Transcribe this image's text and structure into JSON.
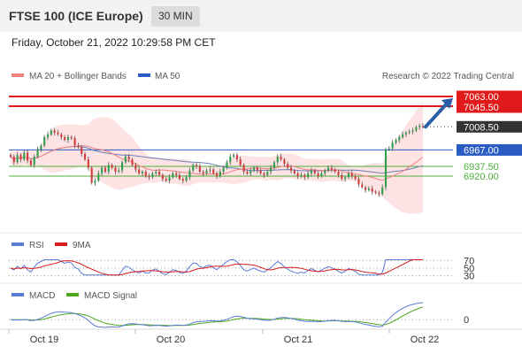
{
  "header": {
    "title": "FTSE 100 (ICE Europe)",
    "interval": "30 MIN"
  },
  "datetime": "Friday, October 21, 2022 10:29:58 PM CET",
  "colors": {
    "resistance": "#e01a1a",
    "pivot": "#2a5cc4",
    "support": "#4caf3a",
    "current": "#333333",
    "bollinger": "#fde3e3",
    "ma50": "#6b7fb3",
    "ma20": "#f08080",
    "rsi": "#5b7bd5",
    "rsi_ma": "#d61c1c",
    "macd": "#5b7bd5",
    "macd_signal": "#4ca81f",
    "arrow": "#2a5fa8"
  },
  "chart_data": {
    "type": "candlestick",
    "legend": [
      "MA 20 + Bollinger Bands",
      "MA 50"
    ],
    "watermark": "Research © 2022 Trading Central",
    "x_ticks": [
      "Oct 19",
      "Oct 20",
      "Oct 21",
      "Oct 22"
    ],
    "price_range": [
      6820,
      7082
    ],
    "levels": [
      {
        "label": "7063.00",
        "value": 7063.0,
        "kind": "resistance"
      },
      {
        "label": "7045.50",
        "value": 7045.5,
        "kind": "resistance"
      },
      {
        "label": "7008.50",
        "value": 7008.5,
        "kind": "current"
      },
      {
        "label": "6967.00",
        "value": 6967.0,
        "kind": "pivot"
      },
      {
        "label": "6937.50",
        "value": 6937.5,
        "kind": "support"
      },
      {
        "label": "6920.00",
        "value": 6920.0,
        "kind": "support"
      }
    ],
    "close_series": [
      6955,
      6945,
      6958,
      6950,
      6962,
      6948,
      6940,
      6955,
      6968,
      6975,
      6990,
      6995,
      7002,
      6998,
      6995,
      6990,
      6985,
      6990,
      6988,
      6975,
      6972,
      6960,
      6950,
      6935,
      6908,
      6912,
      6925,
      6935,
      6928,
      6940,
      6935,
      6928,
      6930,
      6945,
      6955,
      6950,
      6940,
      6932,
      6925,
      6928,
      6920,
      6918,
      6925,
      6928,
      6922,
      6915,
      6912,
      6918,
      6925,
      6922,
      6915,
      6912,
      6918,
      6930,
      6940,
      6938,
      6928,
      6925,
      6930,
      6932,
      6925,
      6920,
      6928,
      6935,
      6945,
      6955,
      6958,
      6950,
      6940,
      6928,
      6925,
      6930,
      6935,
      6930,
      6925,
      6922,
      6928,
      6935,
      6945,
      6955,
      6950,
      6942,
      6935,
      6930,
      6925,
      6920,
      6922,
      6918,
      6925,
      6930,
      6925,
      6920,
      6925,
      6930,
      6935,
      6932,
      6928,
      6922,
      6915,
      6918,
      6925,
      6920,
      6915,
      6905,
      6900,
      6895,
      6898,
      6892,
      6890,
      6888,
      6900,
      6968,
      6970,
      6980,
      6985,
      6990,
      6995,
      6998,
      7000,
      7002,
      7008,
      7010,
      7008.5
    ],
    "indicators": [
      {
        "name": "RSI",
        "signal": "9MA",
        "levels": [
          70,
          50,
          30
        ]
      },
      {
        "name": "MACD",
        "signal": "MACD Signal",
        "levels": [
          0
        ]
      }
    ]
  }
}
